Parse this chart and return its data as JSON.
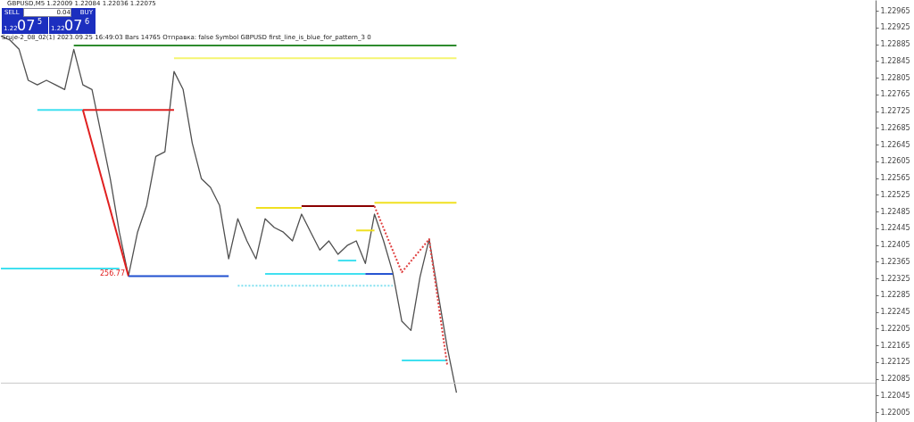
{
  "chart_data": {
    "type": "line",
    "title": "GBPUSD,M5 1.22009 1.22084 1.22036 1.22075",
    "subtitle": "Sruje-2_08_02(1) 2023.09.25 16:49:03 Bars 14765 Отправка: false Symbol GBPUSD first_line_is_blue_for_pattern_3 0",
    "annotations": [
      "SELL",
      "0.04",
      "BUY",
      "1.22",
      "07",
      "5",
      "1.22",
      "07",
      "6",
      "256.77"
    ],
    "categories": [
      null,
      null,
      null,
      null,
      null,
      null,
      null,
      null,
      null,
      null,
      null,
      null,
      null,
      null,
      null,
      null,
      null,
      null,
      null,
      null,
      null,
      null,
      null,
      null,
      null,
      null,
      null,
      null,
      null,
      null,
      null,
      null,
      null,
      null,
      null,
      null,
      null,
      null,
      null,
      null,
      null,
      null,
      null,
      null,
      null,
      null,
      null,
      null,
      null,
      null,
      null,
      null,
      null,
      null,
      null,
      null,
      null,
      null,
      null,
      null,
      null,
      null,
      null,
      null,
      null,
      null,
      null,
      null,
      null,
      null,
      null,
      null,
      null,
      null,
      null,
      null,
      null,
      null,
      null,
      null,
      null,
      null,
      null,
      null,
      null,
      null,
      null,
      null,
      null,
      null,
      null,
      null,
      null,
      null,
      null,
      null,
      null
    ],
    "ylim": [
      1.21982,
      1.22991
    ],
    "yticks": [
      1.22005,
      1.22045,
      1.22085,
      1.22125,
      1.22165,
      1.22205,
      1.22245,
      1.22285,
      1.22325,
      1.22365,
      1.22405,
      1.22445,
      1.22485,
      1.22525,
      1.22565,
      1.22605,
      1.22645,
      1.22685,
      1.22725,
      1.22765,
      1.22805,
      1.22845,
      1.22885,
      1.22925,
      1.22965
    ],
    "tick_labels": "y",
    "line_style": "solid",
    "marker": "none",
    "ref_lines": [
      {
        "axis": "y",
        "value": 1.22075,
        "color": "#c8c8c8"
      }
    ],
    "series": [
      {
        "color": "#505050",
        "values": [
          1.22905,
          1.22895,
          1.22873,
          1.22799,
          1.22788,
          1.22799,
          1.22788,
          1.22777,
          1.22873,
          1.22788,
          1.22777,
          1.22671,
          1.22564,
          1.22436,
          1.22331,
          1.22436,
          1.225,
          1.22617,
          1.22628,
          1.2282,
          1.22777,
          1.22649,
          1.22564,
          1.22543,
          1.225,
          1.22372,
          1.22468,
          1.22415,
          1.22372,
          1.22468,
          1.22447,
          1.22436,
          1.22415,
          1.22479,
          1.22436,
          1.22393,
          1.22415,
          1.22383,
          1.22404,
          1.22415,
          1.22361,
          1.22479,
          1.22415,
          1.2234,
          1.22223,
          1.22201,
          1.22329,
          1.22419,
          1.22287,
          1.22159,
          1.22052,
          null,
          null,
          null,
          null,
          null,
          null,
          null,
          null,
          null,
          null,
          null,
          null,
          null,
          null,
          null,
          null,
          null,
          null,
          null,
          null,
          null,
          null,
          null,
          null,
          null,
          null,
          null,
          null,
          null,
          null,
          null,
          null,
          null,
          null,
          null,
          null,
          null,
          null,
          null,
          null,
          null,
          null,
          null,
          null,
          null,
          null
        ]
      },
      {
        "color": "#2e8b2e",
        "values": [
          null,
          null,
          null,
          null,
          null,
          null,
          null,
          null,
          1.22882,
          1.22882,
          1.22882,
          1.22882,
          1.22882,
          1.22882,
          1.22882,
          1.22882,
          1.22882,
          1.22882,
          1.22882,
          1.22882,
          1.22882,
          1.22882,
          1.22882,
          1.22882,
          1.22882,
          1.22882,
          1.22882,
          1.22882,
          1.22882,
          1.22882,
          1.22882,
          1.22882,
          1.22882,
          1.22882,
          1.22882,
          1.22882,
          1.22882,
          1.22882,
          1.22882,
          1.22882,
          1.22882,
          1.22882,
          1.22882,
          1.22882,
          1.22882,
          1.22882,
          1.22882,
          1.22882,
          1.22882,
          1.22882,
          1.22882,
          null,
          null,
          null,
          null,
          null,
          null,
          null,
          null,
          null,
          null,
          null,
          null,
          null,
          null,
          null,
          null,
          null,
          null,
          null,
          null,
          null,
          null,
          null,
          null,
          null,
          null,
          null,
          null,
          null,
          null,
          null,
          null,
          null,
          null,
          null,
          null,
          null,
          null,
          null,
          null,
          null,
          null,
          null,
          null,
          null,
          null
        ]
      },
      {
        "color": "#f4f470",
        "values": [
          null,
          null,
          null,
          null,
          null,
          null,
          null,
          null,
          null,
          null,
          null,
          null,
          null,
          null,
          null,
          null,
          null,
          null,
          null,
          1.22852,
          1.22852,
          1.22852,
          1.22852,
          1.22852,
          1.22852,
          1.22852,
          1.22852,
          1.22852,
          1.22852,
          1.22852,
          1.22852,
          1.22852,
          1.22852,
          1.22852,
          1.22852,
          1.22852,
          1.22852,
          1.22852,
          1.22852,
          1.22852,
          1.22852,
          1.22852,
          1.22852,
          1.22852,
          1.22852,
          1.22852,
          1.22852,
          1.22852,
          1.22852,
          1.22852,
          1.22852,
          null,
          null,
          null,
          null,
          null,
          null,
          null,
          null,
          null,
          null,
          null,
          null,
          null,
          null,
          null,
          null,
          null,
          null,
          null,
          null,
          null,
          null,
          null,
          null,
          null,
          null,
          null,
          null,
          null,
          null,
          null,
          null,
          null,
          null,
          null,
          null,
          null,
          null,
          null,
          null,
          null,
          null,
          null,
          null,
          null,
          null
        ]
      },
      {
        "color": "#40e0f0",
        "values": [
          null,
          null,
          null,
          null,
          1.22728,
          1.22728,
          1.22728,
          1.22728,
          1.22728,
          1.22728,
          null,
          null,
          null,
          null,
          null,
          null,
          null,
          null,
          null,
          null,
          null,
          null,
          null,
          null,
          null,
          null,
          null,
          null,
          null,
          null,
          null,
          null,
          null,
          null,
          null,
          null,
          null,
          null,
          null,
          null,
          null,
          null,
          null,
          null,
          null,
          null,
          null,
          null,
          null,
          null,
          null,
          null,
          null,
          null,
          null,
          null,
          null,
          null,
          null,
          null,
          null,
          null,
          null,
          null,
          null,
          null,
          null,
          null,
          null,
          null,
          null,
          null,
          null,
          null,
          null,
          null,
          null,
          null,
          null,
          null,
          null,
          null,
          null,
          null,
          null,
          null,
          null,
          null,
          null,
          null,
          null,
          null,
          null,
          null,
          null,
          null,
          null
        ]
      },
      {
        "color": "#e02020",
        "values": [
          null,
          null,
          null,
          null,
          null,
          null,
          null,
          null,
          null,
          1.22728,
          1.22728,
          1.22728,
          1.22728,
          1.22728,
          1.22728,
          1.22728,
          1.22728,
          1.22728,
          1.22728,
          1.22728,
          null,
          null,
          null,
          null,
          null,
          null,
          null,
          null,
          null,
          null,
          null,
          null,
          null,
          null,
          null,
          null,
          null,
          null,
          null,
          null,
          null,
          null,
          null,
          null,
          null,
          null,
          null,
          null,
          null,
          null,
          null,
          null,
          null,
          null,
          null,
          null,
          null,
          null,
          null,
          null,
          null,
          null,
          null,
          null,
          null,
          null,
          null,
          null,
          null,
          null,
          null,
          null,
          null,
          null,
          null,
          null,
          null,
          null,
          null,
          null,
          null,
          null,
          null,
          null,
          null,
          null,
          null,
          null,
          null,
          null,
          null,
          null,
          null,
          null,
          null,
          null,
          null
        ]
      },
      {
        "color": "#e02020",
        "values": [
          null,
          null,
          null,
          null,
          null,
          null,
          null,
          null,
          null,
          1.22728,
          null,
          null,
          null,
          null,
          1.22331,
          null,
          null,
          null,
          null,
          null,
          null,
          null,
          null,
          null,
          null,
          null,
          null,
          null,
          null,
          null,
          null,
          null,
          null,
          null,
          null,
          null,
          null,
          null,
          null,
          null,
          null,
          null,
          null,
          null,
          null,
          null,
          null,
          null,
          null,
          null,
          null,
          null,
          null,
          null,
          null,
          null,
          null,
          null,
          null,
          null,
          null,
          null,
          null,
          null,
          null,
          null,
          null,
          null,
          null,
          null,
          null,
          null,
          null,
          null,
          null,
          null,
          null,
          null,
          null,
          null,
          null,
          null,
          null,
          null,
          null,
          null,
          null,
          null,
          null,
          null,
          null,
          null,
          null,
          null,
          null,
          null,
          null
        ]
      },
      {
        "color": "#40e0f0",
        "values": [
          1.22349,
          1.22349,
          1.22349,
          1.22349,
          1.22349,
          1.22349,
          1.22349,
          1.22349,
          1.22349,
          1.22349,
          1.22349,
          1.22349,
          1.22349,
          1.22349,
          null,
          null,
          null,
          null,
          null,
          null,
          null,
          null,
          null,
          null,
          null,
          null,
          null,
          null,
          null,
          null,
          null,
          null,
          null,
          null,
          null,
          null,
          null,
          null,
          null,
          null,
          null,
          null,
          null,
          null,
          null,
          null,
          null,
          null,
          null,
          null,
          null,
          null,
          null,
          null,
          null,
          null,
          null,
          null,
          null,
          null,
          null,
          null,
          null,
          null,
          null,
          null,
          null,
          null,
          null,
          null,
          null,
          null,
          null,
          null,
          null,
          null,
          null,
          null,
          null,
          null,
          null,
          null,
          null,
          null,
          null,
          null,
          null,
          null,
          null,
          null,
          null,
          null,
          null,
          null,
          null,
          null,
          null
        ]
      },
      {
        "color": "#2050d0",
        "values": [
          null,
          null,
          null,
          null,
          null,
          null,
          null,
          null,
          null,
          null,
          null,
          null,
          null,
          null,
          1.22331,
          1.22331,
          1.22331,
          1.22331,
          1.22331,
          1.22331,
          1.22331,
          1.22331,
          1.22331,
          1.22331,
          1.22331,
          1.22331,
          null,
          null,
          null,
          null,
          null,
          null,
          null,
          null,
          null,
          null,
          null,
          null,
          null,
          null,
          null,
          null,
          null,
          null,
          null,
          null,
          null,
          null,
          null,
          null,
          null,
          null,
          null,
          null,
          null,
          null,
          null,
          null,
          null,
          null,
          null,
          null,
          null,
          null,
          null,
          null,
          null,
          null,
          null,
          null,
          null,
          null,
          null,
          null,
          null,
          null,
          null,
          null,
          null,
          null,
          null,
          null,
          null,
          null,
          null,
          null,
          null,
          null,
          null,
          null,
          null,
          null,
          null,
          null,
          null,
          null,
          null
        ]
      },
      {
        "color": "#f0e020",
        "values": [
          null,
          null,
          null,
          null,
          null,
          null,
          null,
          null,
          null,
          null,
          null,
          null,
          null,
          null,
          null,
          null,
          null,
          null,
          null,
          null,
          null,
          null,
          null,
          null,
          null,
          null,
          null,
          null,
          1.22494,
          1.22494,
          1.22494,
          1.22494,
          1.22494,
          1.22494,
          null,
          null,
          null,
          null,
          null,
          null,
          null,
          null,
          null,
          null,
          null,
          null,
          null,
          null,
          null,
          null,
          null,
          null,
          null,
          null,
          null,
          null,
          null,
          null,
          null,
          null,
          null,
          null,
          null,
          null,
          null,
          null,
          null,
          null,
          null,
          null,
          null,
          null,
          null,
          null,
          null,
          null,
          null,
          null,
          null,
          null,
          null,
          null,
          null,
          null,
          null,
          null,
          null,
          null,
          null,
          null,
          null,
          null,
          null,
          null,
          null,
          null,
          null
        ]
      },
      {
        "color": "#8b0000",
        "values": [
          null,
          null,
          null,
          null,
          null,
          null,
          null,
          null,
          null,
          null,
          null,
          null,
          null,
          null,
          null,
          null,
          null,
          null,
          null,
          null,
          null,
          null,
          null,
          null,
          null,
          null,
          null,
          null,
          null,
          null,
          null,
          null,
          null,
          1.22498,
          1.22498,
          1.22498,
          1.22498,
          1.22498,
          1.22498,
          1.22498,
          1.22498,
          1.22498,
          null,
          null,
          null,
          null,
          null,
          null,
          null,
          null,
          null,
          null,
          null,
          null,
          null,
          null,
          null,
          null,
          null,
          null,
          null,
          null,
          null,
          null,
          null,
          null,
          null,
          null,
          null,
          null,
          null,
          null,
          null,
          null,
          null,
          null,
          null,
          null,
          null,
          null,
          null,
          null,
          null,
          null,
          null,
          null,
          null,
          null,
          null,
          null,
          null,
          null,
          null,
          null,
          null,
          null,
          null
        ]
      },
      {
        "color": "#f0e020",
        "values": [
          null,
          null,
          null,
          null,
          null,
          null,
          null,
          null,
          null,
          null,
          null,
          null,
          null,
          null,
          null,
          null,
          null,
          null,
          null,
          null,
          null,
          null,
          null,
          null,
          null,
          null,
          null,
          null,
          null,
          null,
          null,
          null,
          null,
          null,
          null,
          null,
          null,
          null,
          null,
          null,
          null,
          1.22506,
          1.22506,
          1.22506,
          1.22506,
          1.22506,
          1.22506,
          1.22506,
          1.22506,
          1.22506,
          1.22506,
          null,
          null,
          null,
          null,
          null,
          null,
          null,
          null,
          null,
          null,
          null,
          null,
          null,
          null,
          null,
          null,
          null,
          null,
          null,
          null,
          null,
          null,
          null,
          null,
          null,
          null,
          null,
          null,
          null,
          null,
          null,
          null,
          null,
          null,
          null,
          null,
          null,
          null,
          null,
          null,
          null,
          null,
          null,
          null,
          null,
          null
        ]
      },
      {
        "color": "#40e0f0",
        "values": [
          null,
          null,
          null,
          null,
          null,
          null,
          null,
          null,
          null,
          null,
          null,
          null,
          null,
          null,
          null,
          null,
          null,
          null,
          null,
          null,
          null,
          null,
          null,
          null,
          null,
          null,
          null,
          null,
          null,
          1.22336,
          1.22336,
          1.22336,
          1.22336,
          1.22336,
          1.22336,
          1.22336,
          1.22336,
          1.22336,
          1.22336,
          1.22336,
          1.22336,
          null,
          null,
          null,
          null,
          null,
          null,
          null,
          null,
          null,
          null,
          null,
          null,
          null,
          null,
          null,
          null,
          null,
          null,
          null,
          null,
          null,
          null,
          null,
          null,
          null,
          null,
          null,
          null,
          null,
          null,
          null,
          null,
          null,
          null,
          null,
          null,
          null,
          null,
          null,
          null,
          null,
          null,
          null,
          null,
          null,
          null,
          null,
          null,
          null,
          null,
          null,
          null,
          null,
          null,
          null,
          null
        ]
      },
      {
        "color": "#2050d0",
        "values": [
          null,
          null,
          null,
          null,
          null,
          null,
          null,
          null,
          null,
          null,
          null,
          null,
          null,
          null,
          null,
          null,
          null,
          null,
          null,
          null,
          null,
          null,
          null,
          null,
          null,
          null,
          null,
          null,
          null,
          null,
          null,
          null,
          null,
          null,
          null,
          null,
          null,
          null,
          null,
          null,
          1.22336,
          1.22336,
          1.22336,
          1.22336,
          null,
          null,
          null,
          null,
          null,
          null,
          null,
          null,
          null,
          null,
          null,
          null,
          null,
          null,
          null,
          null,
          null,
          null,
          null,
          null,
          null,
          null,
          null,
          null,
          null,
          null,
          null,
          null,
          null,
          null,
          null,
          null,
          null,
          null,
          null,
          null,
          null,
          null,
          null,
          null,
          null,
          null,
          null,
          null,
          null,
          null,
          null,
          null,
          null,
          null,
          null,
          null,
          null
        ]
      },
      {
        "color": "#40e0f0",
        "values": [
          null,
          null,
          null,
          null,
          null,
          null,
          null,
          null,
          null,
          null,
          null,
          null,
          null,
          null,
          null,
          null,
          null,
          null,
          null,
          null,
          null,
          null,
          null,
          null,
          null,
          null,
          null,
          null,
          null,
          null,
          null,
          null,
          null,
          null,
          null,
          null,
          null,
          1.22368,
          1.22368,
          1.22368,
          null,
          null,
          null,
          null,
          null,
          null,
          null,
          null,
          null,
          null,
          null,
          null,
          null,
          null,
          null,
          null,
          null,
          null,
          null,
          null,
          null,
          null,
          null,
          null,
          null,
          null,
          null,
          null,
          null,
          null,
          null,
          null,
          null,
          null,
          null,
          null,
          null,
          null,
          null,
          null,
          null,
          null,
          null,
          null,
          null,
          null,
          null,
          null,
          null,
          null,
          null,
          null,
          null,
          null,
          null,
          null,
          null
        ]
      },
      {
        "color": "#f0e020",
        "values": [
          null,
          null,
          null,
          null,
          null,
          null,
          null,
          null,
          null,
          null,
          null,
          null,
          null,
          null,
          null,
          null,
          null,
          null,
          null,
          null,
          null,
          null,
          null,
          null,
          null,
          null,
          null,
          null,
          null,
          null,
          null,
          null,
          null,
          null,
          null,
          null,
          null,
          null,
          null,
          1.2244,
          1.2244,
          1.2244,
          null,
          null,
          null,
          null,
          null,
          null,
          null,
          null,
          null,
          null,
          null,
          null,
          null,
          null,
          null,
          null,
          null,
          null,
          null,
          null,
          null,
          null,
          null,
          null,
          null,
          null,
          null,
          null,
          null,
          null,
          null,
          null,
          null,
          null,
          null,
          null,
          null,
          null,
          null,
          null,
          null,
          null,
          null,
          null,
          null,
          null,
          null,
          null,
          null,
          null,
          null,
          null,
          null,
          null,
          null
        ]
      },
      {
        "color": "#40e0f0",
        "values": [
          null,
          null,
          null,
          null,
          null,
          null,
          null,
          null,
          null,
          null,
          null,
          null,
          null,
          null,
          null,
          null,
          null,
          null,
          null,
          null,
          null,
          null,
          null,
          null,
          null,
          null,
          null,
          null,
          null,
          null,
          null,
          null,
          null,
          null,
          null,
          null,
          null,
          null,
          null,
          null,
          null,
          null,
          null,
          null,
          1.22129,
          1.22129,
          1.22129,
          1.22129,
          1.22129,
          1.22129,
          null,
          null,
          null,
          null,
          null,
          null,
          null,
          null,
          null,
          null,
          null,
          null,
          null,
          null,
          null,
          null,
          null,
          null,
          null,
          null,
          null,
          null,
          null,
          null,
          null,
          null,
          null,
          null,
          null,
          null,
          null,
          null,
          null,
          null,
          null,
          null,
          null,
          null,
          null,
          null,
          null,
          null,
          null,
          null,
          null,
          null,
          null
        ]
      },
      {
        "color": "#e04040",
        "line_style": "dotted",
        "values": [
          null,
          null,
          null,
          null,
          null,
          null,
          null,
          null,
          null,
          null,
          null,
          null,
          null,
          null,
          null,
          null,
          null,
          null,
          null,
          null,
          null,
          null,
          null,
          null,
          null,
          null,
          null,
          null,
          null,
          null,
          null,
          null,
          null,
          null,
          null,
          null,
          null,
          null,
          null,
          null,
          null,
          1.22498,
          null,
          null,
          1.2234,
          null,
          null,
          1.22419,
          null,
          1.22116,
          null,
          null,
          null,
          null,
          null,
          null,
          null,
          null,
          null,
          null,
          null,
          null,
          null,
          null,
          null,
          null,
          null,
          null,
          null,
          null,
          null,
          null,
          null,
          null,
          null,
          null,
          null,
          null,
          null,
          null,
          null,
          null,
          null,
          null,
          null,
          null,
          null,
          null,
          null,
          null,
          null,
          null,
          null,
          null,
          null,
          null,
          null
        ]
      },
      {
        "color": "#80e0f0",
        "line_style": "dotted",
        "values": [
          null,
          null,
          null,
          null,
          null,
          null,
          null,
          null,
          null,
          null,
          null,
          null,
          null,
          null,
          null,
          null,
          null,
          null,
          null,
          null,
          null,
          null,
          null,
          null,
          null,
          null,
          1.22308,
          1.22308,
          1.22308,
          1.22308,
          1.22308,
          1.22308,
          1.22308,
          1.22308,
          1.22308,
          1.22308,
          1.22308,
          1.22308,
          1.22308,
          1.22308,
          1.22308,
          1.22308,
          1.22308,
          1.22308,
          null,
          null,
          null,
          null,
          null,
          null,
          null,
          null,
          null,
          null,
          null,
          null,
          null,
          null,
          null,
          null,
          null,
          null,
          null,
          null,
          null,
          null,
          null,
          null,
          null,
          null,
          null,
          null,
          null,
          null,
          null,
          null,
          null,
          null,
          null,
          null,
          null,
          null,
          null,
          null,
          null,
          null,
          null,
          null,
          null,
          null,
          null,
          null,
          null,
          null,
          null,
          null,
          null
        ]
      }
    ]
  }
}
